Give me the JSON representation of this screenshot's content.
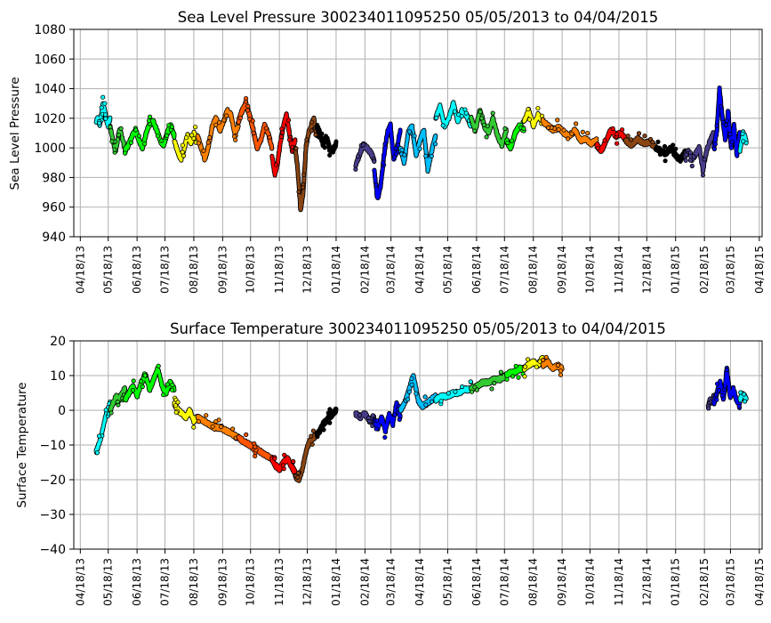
{
  "chart_data": [
    {
      "type": "scatter",
      "title": "Sea Level Pressure 300234011095250  05/05/2013 to 04/04/2015",
      "ylabel": "Sea Level Pressure",
      "ylim": [
        940,
        1080
      ],
      "yticks": [
        "940",
        "960",
        "980",
        "1000",
        "1020",
        "1040",
        "1060",
        "1080"
      ],
      "xlim": [
        "2013-04-11",
        "2015-04-21"
      ],
      "xticks": [
        "04/18/13",
        "05/18/13",
        "06/18/13",
        "07/18/13",
        "08/18/13",
        "09/18/13",
        "10/18/13",
        "11/18/13",
        "12/18/13",
        "01/18/14",
        "02/18/14",
        "03/18/14",
        "04/18/14",
        "05/18/14",
        "06/18/14",
        "07/18/14",
        "08/18/14",
        "09/18/14",
        "10/18/14",
        "11/18/14",
        "12/18/14",
        "01/18/15",
        "02/18/15",
        "03/18/15",
        "04/18/15"
      ],
      "grid": true,
      "segments": [
        {
          "color": "#00ffff",
          "start": "2013-05-05",
          "end": "2013-05-20",
          "values": [
            1018,
            1020,
            1016,
            1022,
            1030,
            1025,
            1018,
            1015,
            1020
          ]
        },
        {
          "color": "#33cc33",
          "start": "2013-05-20",
          "end": "2013-06-05",
          "values": [
            1015,
            1008,
            1002,
            998,
            1005,
            1012,
            1010,
            1004,
            1000
          ]
        },
        {
          "color": "#00ff00",
          "start": "2013-06-05",
          "end": "2013-07-28",
          "values": [
            998,
            1002,
            1008,
            1012,
            1005,
            1000,
            1010,
            1016,
            1018,
            1012,
            1005,
            1002,
            1010,
            1015,
            1008
          ]
        },
        {
          "color": "#ffff00",
          "start": "2013-07-28",
          "end": "2013-08-22",
          "values": [
            1005,
            998,
            992,
            1000,
            1008,
            1003,
            1010,
            1006
          ]
        },
        {
          "color": "#ff8000",
          "start": "2013-08-22",
          "end": "2013-10-05",
          "values": [
            1008,
            1000,
            992,
            1002,
            1015,
            1020,
            1012,
            1018,
            1025,
            1022,
            1010,
            1015
          ]
        },
        {
          "color": "#ff5500",
          "start": "2013-10-05",
          "end": "2013-11-10",
          "values": [
            1018,
            1025,
            1030,
            1022,
            1012,
            1000,
            1005,
            1015,
            1010,
            1000
          ]
        },
        {
          "color": "#ff0000",
          "start": "2013-11-10",
          "end": "2013-12-05",
          "values": [
            995,
            982,
            990,
            1005,
            1015,
            1022,
            1010,
            998,
            1005
          ]
        },
        {
          "color": "#8b4513",
          "start": "2013-12-05",
          "end": "2013-12-28",
          "values": [
            1000,
            985,
            958,
            970,
            1000,
            1010,
            1015,
            1020,
            1008
          ]
        },
        {
          "color": "#000000",
          "start": "2013-12-28",
          "end": "2014-01-18",
          "values": [
            1015,
            1010,
            1002,
            1008,
            1000,
            998,
            1003
          ]
        },
        {
          "color": "#483d8b",
          "start": "2014-02-08",
          "end": "2014-02-28",
          "values": [
            988,
            995,
            1002,
            1000,
            997,
            992
          ]
        },
        {
          "color": "#0000ff",
          "start": "2014-02-28",
          "end": "2014-03-28",
          "values": [
            985,
            965,
            975,
            995,
            1010,
            1015,
            992,
            1000,
            1012
          ]
        },
        {
          "color": "#00bfff",
          "start": "2014-03-28",
          "end": "2014-05-05",
          "values": [
            1000,
            990,
            1010,
            1015,
            995,
            1005,
            1012,
            985,
            998,
            1008
          ]
        },
        {
          "color": "#00ffff",
          "start": "2014-05-05",
          "end": "2014-06-12",
          "values": [
            1020,
            1028,
            1015,
            1020,
            1030,
            1018,
            1025,
            1022,
            1015
          ]
        },
        {
          "color": "#33cc33",
          "start": "2014-06-12",
          "end": "2014-07-20",
          "values": [
            1020,
            1012,
            1025,
            1015,
            1010,
            1020,
            1008,
            1002,
            1012
          ]
        },
        {
          "color": "#00ff00",
          "start": "2014-07-20",
          "end": "2014-08-08",
          "values": [
            1005,
            1000,
            1010,
            1015,
            1012
          ]
        },
        {
          "color": "#ffff00",
          "start": "2014-08-08",
          "end": "2014-08-28",
          "values": [
            1018,
            1025,
            1015,
            1022,
            1018
          ]
        },
        {
          "color": "#ff8000",
          "start": "2014-08-28",
          "end": "2014-10-25",
          "values": [
            1018,
            1015,
            1012,
            1014,
            1010,
            1008,
            1012,
            1005,
            1006,
            1003,
            1005
          ]
        },
        {
          "color": "#ff0000",
          "start": "2014-10-25",
          "end": "2014-11-25",
          "values": [
            1002,
            998,
            1005,
            1012,
            1008,
            1010,
            1006
          ]
        },
        {
          "color": "#8b4513",
          "start": "2014-11-25",
          "end": "2014-12-28",
          "values": [
            1005,
            1002,
            1006,
            1003,
            1004,
            1000
          ]
        },
        {
          "color": "#000000",
          "start": "2014-12-28",
          "end": "2015-01-28",
          "values": [
            1000,
            998,
            996,
            1000,
            995,
            992,
            997
          ]
        },
        {
          "color": "#483d8b",
          "start": "2015-01-28",
          "end": "2015-02-28",
          "values": [
            995,
            998,
            992,
            996,
            1000,
            985,
            998,
            1005,
            1010
          ]
        },
        {
          "color": "#0000ff",
          "start": "2015-02-28",
          "end": "2015-03-28",
          "values": [
            1000,
            1010,
            1040,
            1020,
            1005,
            1025,
            1000,
            1015,
            995,
            1010
          ]
        },
        {
          "color": "#00ffff",
          "start": "2015-03-28",
          "end": "2015-04-04",
          "values": [
            998,
            1010,
            1005
          ]
        }
      ]
    },
    {
      "type": "scatter",
      "title": "Surface Temperature 300234011095250  05/05/2013 to 04/04/2015",
      "ylabel": "Surface Temperature",
      "ylim": [
        -40,
        20
      ],
      "yticks": [
        "−40",
        "−30",
        "−20",
        "−10",
        "0",
        "10",
        "20"
      ],
      "xlim": [
        "2013-04-11",
        "2015-04-21"
      ],
      "xticks": [
        "04/18/13",
        "05/18/13",
        "06/18/13",
        "07/18/13",
        "08/18/13",
        "09/18/13",
        "10/18/13",
        "11/18/13",
        "12/18/13",
        "01/18/14",
        "02/18/14",
        "03/18/14",
        "04/18/14",
        "05/18/14",
        "06/18/14",
        "07/18/14",
        "08/18/14",
        "09/18/14",
        "10/18/14",
        "11/18/14",
        "12/18/14",
        "01/18/15",
        "02/18/15",
        "03/18/15",
        "04/18/15"
      ],
      "grid": true,
      "segments": [
        {
          "color": "#00ffff",
          "start": "2013-05-05",
          "end": "2013-05-20",
          "values": [
            -12,
            -10,
            -8,
            -5,
            -2,
            0,
            2
          ]
        },
        {
          "color": "#33cc33",
          "start": "2013-05-20",
          "end": "2013-06-05",
          "values": [
            0,
            2,
            4,
            3,
            5,
            6
          ]
        },
        {
          "color": "#00ff00",
          "start": "2013-06-05",
          "end": "2013-07-28",
          "values": [
            3,
            5,
            7,
            4,
            8,
            10,
            6,
            9,
            12,
            7,
            5,
            8,
            6
          ]
        },
        {
          "color": "#ffff00",
          "start": "2013-07-28",
          "end": "2013-08-22",
          "values": [
            2,
            0,
            -1,
            -2,
            0,
            -3,
            -2
          ]
        },
        {
          "color": "#ff8000",
          "start": "2013-08-22",
          "end": "2013-10-05",
          "values": [
            -2,
            -3,
            -4,
            -5,
            -5,
            -6,
            -7,
            -8
          ]
        },
        {
          "color": "#ff5500",
          "start": "2013-10-05",
          "end": "2013-11-10",
          "values": [
            -8,
            -9,
            -10,
            -11,
            -12,
            -13,
            -14
          ]
        },
        {
          "color": "#ff0000",
          "start": "2013-11-10",
          "end": "2013-12-05",
          "values": [
            -14,
            -16,
            -17,
            -15,
            -14,
            -16,
            -18
          ]
        },
        {
          "color": "#8b4513",
          "start": "2013-12-05",
          "end": "2013-12-28",
          "values": [
            -19,
            -20,
            -17,
            -12,
            -9,
            -8,
            -7
          ]
        },
        {
          "color": "#000000",
          "start": "2013-12-28",
          "end": "2014-01-18",
          "values": [
            -7,
            -6,
            -4,
            -3,
            -2,
            -1,
            0
          ]
        },
        {
          "color": "#483d8b",
          "start": "2014-02-08",
          "end": "2014-02-28",
          "values": [
            -1,
            -2,
            -1,
            -3,
            -2
          ]
        },
        {
          "color": "#0000ff",
          "start": "2014-02-28",
          "end": "2014-03-28",
          "values": [
            -3,
            -5,
            -2,
            -6,
            -1,
            -4,
            2,
            -2
          ]
        },
        {
          "color": "#00bfff",
          "start": "2014-03-28",
          "end": "2014-05-05",
          "values": [
            0,
            2,
            6,
            10,
            3,
            1,
            2,
            3,
            4
          ]
        },
        {
          "color": "#00ffff",
          "start": "2014-05-05",
          "end": "2014-06-12",
          "values": [
            3,
            4,
            4,
            5,
            5,
            6,
            6
          ]
        },
        {
          "color": "#33cc33",
          "start": "2014-06-12",
          "end": "2014-07-20",
          "values": [
            6,
            7,
            8,
            8,
            9,
            9,
            10
          ]
        },
        {
          "color": "#00ff00",
          "start": "2014-07-20",
          "end": "2014-08-08",
          "values": [
            10,
            11,
            11,
            12,
            12
          ]
        },
        {
          "color": "#ffff00",
          "start": "2014-08-08",
          "end": "2014-08-28",
          "values": [
            12,
            13,
            14,
            13,
            15
          ]
        },
        {
          "color": "#ff8000",
          "start": "2014-08-28",
          "end": "2014-09-18",
          "values": [
            13,
            14,
            12,
            13,
            12
          ]
        },
        {
          "color": "#483d8b",
          "start": "2015-02-22",
          "end": "2015-02-28",
          "values": [
            1,
            3,
            2,
            4
          ]
        },
        {
          "color": "#0000ff",
          "start": "2015-02-28",
          "end": "2015-03-28",
          "values": [
            2,
            5,
            8,
            3,
            12,
            4,
            6,
            3,
            2
          ]
        },
        {
          "color": "#00ffff",
          "start": "2015-03-28",
          "end": "2015-04-04",
          "values": [
            3,
            5,
            3
          ]
        }
      ]
    }
  ]
}
